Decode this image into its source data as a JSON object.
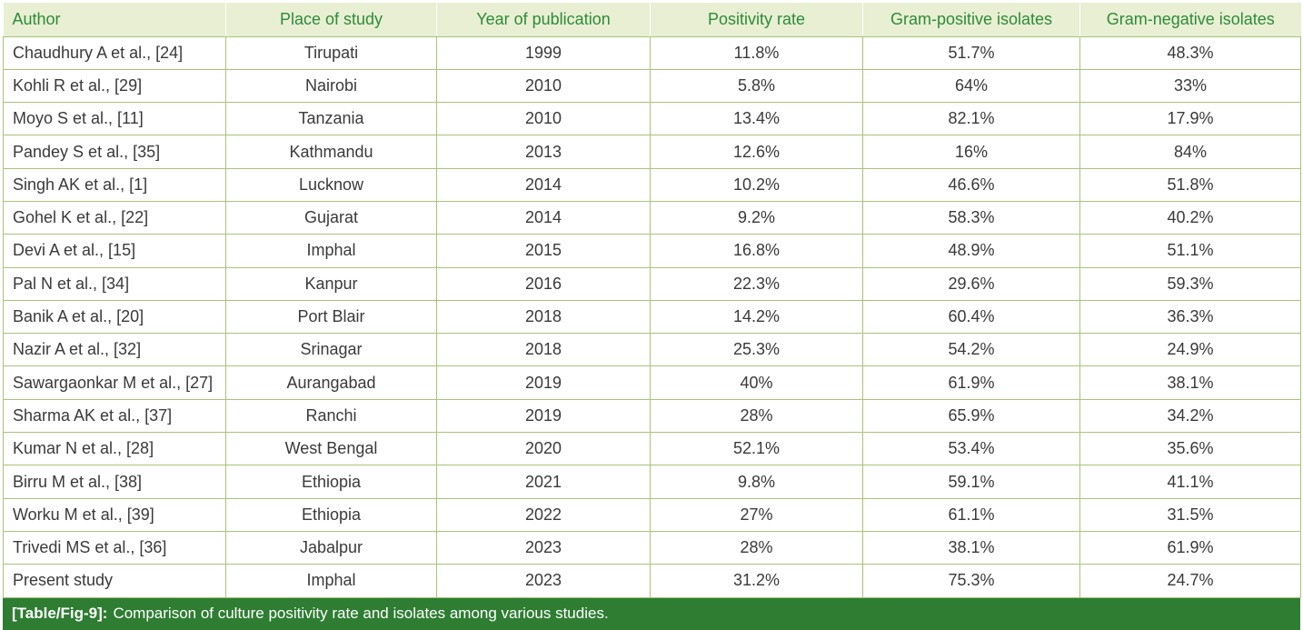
{
  "table": {
    "headers": [
      "Author",
      "Place of study",
      "Year of publication",
      "Positivity rate",
      "Gram-positive isolates",
      "Gram-negative isolates"
    ],
    "rows": [
      [
        "Chaudhury A et al., [24]",
        "Tirupati",
        "1999",
        "11.8%",
        "51.7%",
        "48.3%"
      ],
      [
        "Kohli R et al., [29]",
        "Nairobi",
        "2010",
        "5.8%",
        "64%",
        "33%"
      ],
      [
        "Moyo S et al., [11]",
        "Tanzania",
        "2010",
        "13.4%",
        "82.1%",
        "17.9%"
      ],
      [
        "Pandey S et al., [35]",
        "Kathmandu",
        "2013",
        "12.6%",
        "16%",
        "84%"
      ],
      [
        "Singh AK et al., [1]",
        "Lucknow",
        "2014",
        "10.2%",
        "46.6%",
        "51.8%"
      ],
      [
        "Gohel K et al., [22]",
        "Gujarat",
        "2014",
        "9.2%",
        "58.3%",
        "40.2%"
      ],
      [
        "Devi A et al., [15]",
        "Imphal",
        "2015",
        "16.8%",
        "48.9%",
        "51.1%"
      ],
      [
        "Pal N et al., [34]",
        "Kanpur",
        "2016",
        "22.3%",
        "29.6%",
        "59.3%"
      ],
      [
        "Banik A et al., [20]",
        "Port Blair",
        "2018",
        "14.2%",
        "60.4%",
        "36.3%"
      ],
      [
        "Nazir A et al., [32]",
        "Srinagar",
        "2018",
        "25.3%",
        "54.2%",
        "24.9%"
      ],
      [
        "Sawargaonkar M et al., [27]",
        "Aurangabad",
        "2019",
        "40%",
        "61.9%",
        "38.1%"
      ],
      [
        "Sharma AK et al., [37]",
        "Ranchi",
        "2019",
        "28%",
        "65.9%",
        "34.2%"
      ],
      [
        "Kumar N et al., [28]",
        "West Bengal",
        "2020",
        "52.1%",
        "53.4%",
        "35.6%"
      ],
      [
        "Birru M et al., [38]",
        "Ethiopia",
        "2021",
        "9.8%",
        "59.1%",
        "41.1%"
      ],
      [
        "Worku M et al., [39]",
        "Ethiopia",
        "2022",
        "27%",
        "61.1%",
        "31.5%"
      ],
      [
        "Trivedi MS et al., [36]",
        "Jabalpur",
        "2023",
        "28%",
        "38.1%",
        "61.9%"
      ],
      [
        "Present study",
        "Imphal",
        "2023",
        "31.2%",
        "75.3%",
        "24.7%"
      ]
    ]
  },
  "caption": {
    "label": "[Table/Fig-9]:",
    "text": "Comparison of culture positivity rate and isolates among various studies."
  },
  "colors": {
    "header_bg": "#e8efd2",
    "header_text": "#2e8b3a",
    "border": "#a8c47a",
    "caption_bg": "#2e7d32"
  }
}
